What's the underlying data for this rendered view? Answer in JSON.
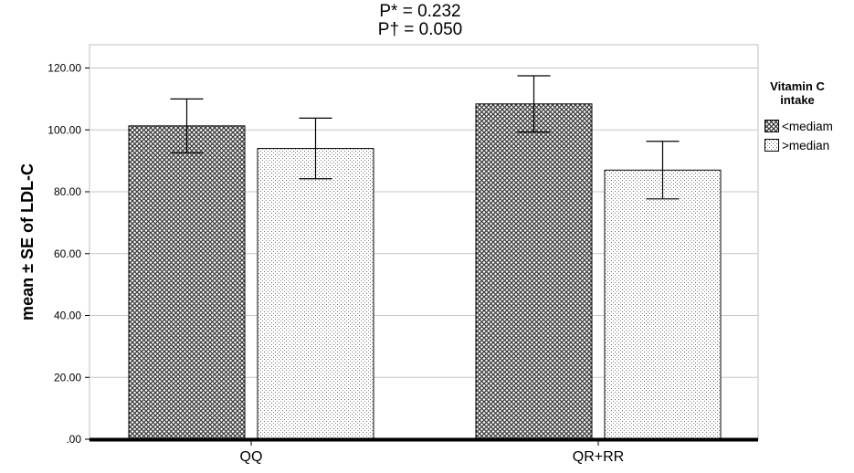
{
  "chart_data": {
    "type": "bar",
    "categories": [
      "QQ",
      "QR+RR"
    ],
    "series": [
      {
        "name": "<mediam",
        "values": [
          101.3,
          108.4
        ],
        "se": [
          8.7,
          9.1
        ],
        "pattern": "crosshatch"
      },
      {
        "name": ">median",
        "values": [
          94.0,
          87.0
        ],
        "se": [
          9.8,
          9.3
        ],
        "pattern": "dots"
      }
    ],
    "ylabel": "mean ± SE of LDL-C",
    "xlabel": "",
    "ylim": [
      0,
      120
    ],
    "yticks": [
      0,
      20,
      40,
      60,
      80,
      100,
      120
    ],
    "ytick_labels": [
      ".00",
      "20.00",
      "40.00",
      "60.00",
      "80.00",
      "100.00",
      "120.00"
    ],
    "annotations": [
      "P* = 0.232",
      "P† = 0.050"
    ],
    "legend": {
      "title_lines": [
        "Vitamin C",
        "intake"
      ],
      "position": "top-right"
    },
    "grid": true
  }
}
